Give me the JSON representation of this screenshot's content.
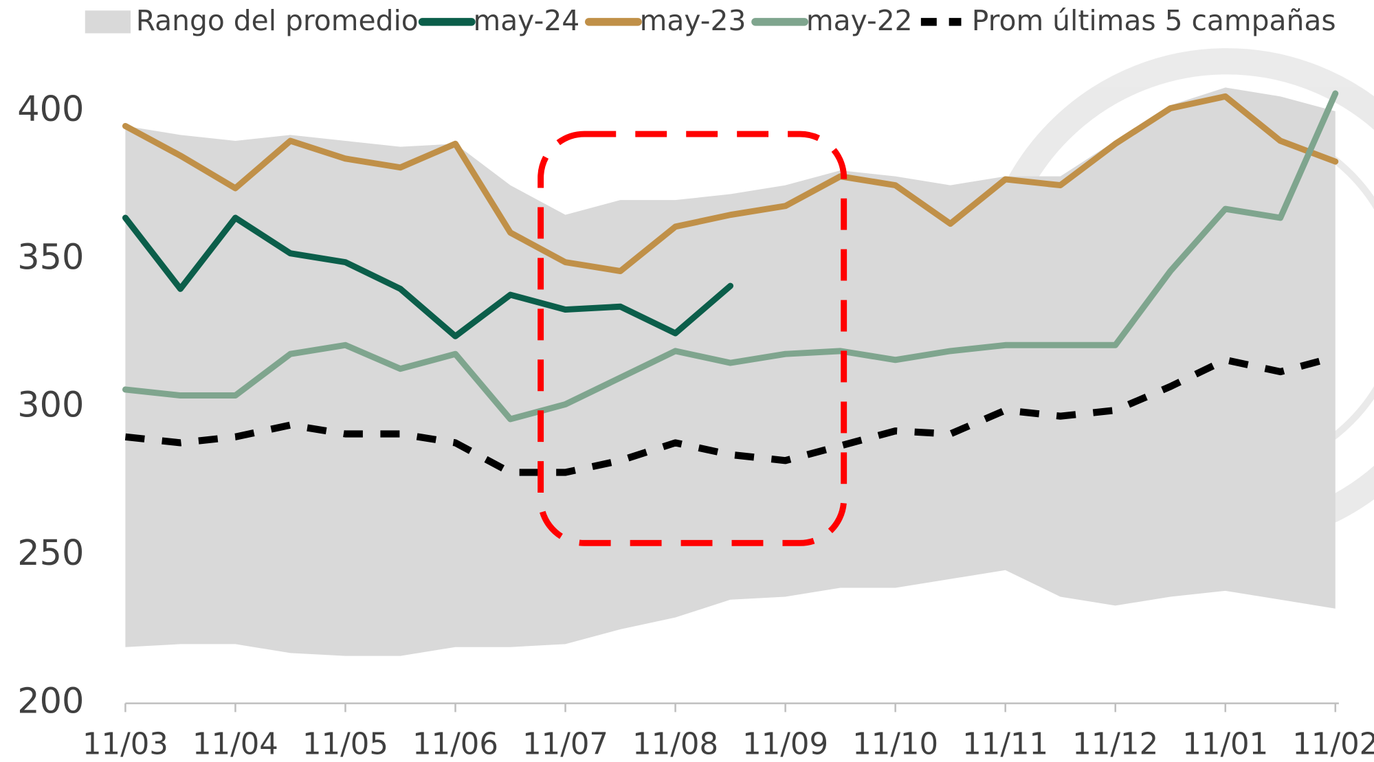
{
  "chart_data": {
    "type": "line",
    "categories": [
      "11/03",
      null,
      "11/04",
      null,
      "11/05",
      null,
      "11/06",
      null,
      "11/07",
      null,
      "11/08",
      null,
      "11/09",
      null,
      "11/10",
      null,
      "11/11",
      null,
      "11/12",
      null,
      "11/01",
      null,
      "11/02"
    ],
    "series": [
      {
        "name": "Rango del promedio",
        "kind": "range",
        "color": "#d9d9d9",
        "values": [
          395,
          392,
          390,
          392,
          390,
          388,
          389,
          375,
          365,
          370,
          370,
          372,
          375,
          380,
          378,
          375,
          378,
          378,
          390,
          402,
          408,
          405,
          400
        ],
        "low": [
          219,
          220,
          220,
          217,
          216,
          216,
          219,
          219,
          220,
          225,
          229,
          235,
          236,
          239,
          239,
          242,
          245,
          236,
          233,
          236,
          238,
          235,
          232
        ]
      },
      {
        "name": "may-24",
        "color": "#0b5e4a",
        "values": [
          364,
          340,
          364,
          352,
          349,
          340,
          324,
          338,
          333,
          334,
          325,
          341,
          null,
          null,
          null,
          null,
          null,
          null,
          null,
          null,
          null,
          null,
          null
        ]
      },
      {
        "name": "may-23",
        "color": "#c09048",
        "values": [
          395,
          385,
          374,
          390,
          384,
          381,
          389,
          359,
          349,
          346,
          361,
          365,
          368,
          378,
          375,
          362,
          377,
          375,
          389,
          401,
          405,
          390,
          383
        ]
      },
      {
        "name": "may-22",
        "color": "#7fa58e",
        "values": [
          306,
          304,
          304,
          318,
          321,
          313,
          318,
          296,
          301,
          310,
          319,
          315,
          318,
          319,
          316,
          319,
          321,
          321,
          321,
          346,
          367,
          364,
          406
        ]
      },
      {
        "name": "Prom últimas 5 campañas",
        "color": "#000000",
        "dashed": true,
        "values": [
          290,
          288,
          290,
          294,
          291,
          291,
          288,
          278,
          278,
          282,
          288,
          284,
          282,
          287,
          292,
          291,
          299,
          297,
          299,
          307,
          316,
          312,
          317
        ]
      }
    ],
    "ylim": [
      200,
      410
    ],
    "yticks": [
      200,
      250,
      300,
      350,
      400
    ],
    "legend": "top"
  }
}
